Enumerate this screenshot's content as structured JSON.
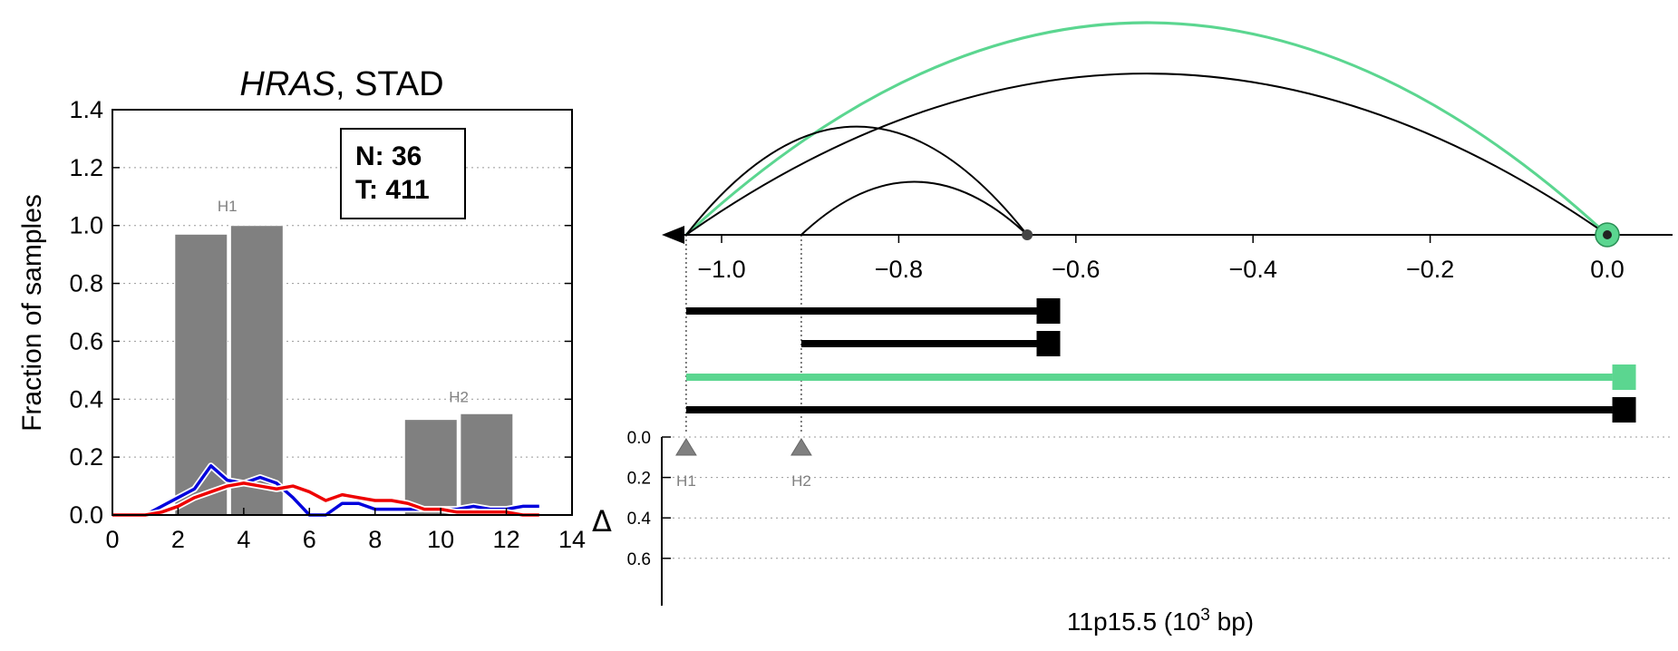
{
  "chart_data": [
    {
      "type": "bar",
      "title_gene": "HRAS",
      "title_rest": ", STAD",
      "ylabel": "Fraction of samples",
      "xlim": [
        0,
        14
      ],
      "ylim": [
        0,
        1.4
      ],
      "xticks": [
        "0",
        "2",
        "4",
        "6",
        "8",
        "10",
        "12",
        "14"
      ],
      "yticks": [
        "0.0",
        "0.2",
        "0.4",
        "0.6",
        "0.8",
        "1.0",
        "1.2",
        "1.4"
      ],
      "grid": "horizontal dotted",
      "bar_color": "#808080",
      "bars": [
        {
          "x": [
            1.9,
            3.5
          ],
          "value": 0.97
        },
        {
          "x": [
            3.6,
            5.2
          ],
          "value": 1.0
        },
        {
          "x": [
            8.9,
            10.5
          ],
          "value": 0.33
        },
        {
          "x": [
            10.6,
            12.2
          ],
          "value": 0.35
        }
      ],
      "bar_labels": [
        {
          "text": "H1",
          "x": 3.5,
          "y": 1.05
        },
        {
          "text": "H2",
          "x": 10.55,
          "y": 0.39
        }
      ],
      "counts_box": {
        "n": "N: 36",
        "t": "T: 411"
      },
      "series": [
        {
          "color": "#0000dd",
          "x": [
            0,
            1,
            2,
            2.5,
            3,
            3.5,
            4,
            4.5,
            5,
            5.5,
            6,
            6.5,
            7,
            7.5,
            8,
            8.5,
            9,
            9.5,
            10,
            10.5,
            11,
            11.5,
            12,
            12.5,
            13
          ],
          "values": [
            0,
            0,
            0.06,
            0.09,
            0.17,
            0.12,
            0.11,
            0.13,
            0.11,
            0.06,
            0.0,
            0.0,
            0.04,
            0.04,
            0.02,
            0.02,
            0.02,
            0.02,
            0.02,
            0.02,
            0.03,
            0.02,
            0.02,
            0.03,
            0.03
          ]
        },
        {
          "color": "#ee0000",
          "x": [
            0,
            1,
            1.5,
            2,
            2.5,
            3,
            3.5,
            4,
            4.5,
            5,
            5.5,
            6,
            6.5,
            7,
            7.5,
            8,
            8.5,
            9,
            9.5,
            10,
            10.5,
            11,
            11.5,
            12,
            12.5,
            13
          ],
          "values": [
            0,
            0,
            0.01,
            0.03,
            0.06,
            0.08,
            0.1,
            0.11,
            0.1,
            0.09,
            0.1,
            0.08,
            0.05,
            0.07,
            0.06,
            0.05,
            0.05,
            0.04,
            0.02,
            0.02,
            0.01,
            0.01,
            0.01,
            0.01,
            0.0,
            0.0
          ]
        }
      ]
    },
    {
      "type": "arc-diagram",
      "xlabel_prefix": "11p15.5 (10",
      "xlabel_exp": "3",
      "xlabel_suffix": " bp)",
      "xlim": [
        -1.1,
        0.06
      ],
      "xticks": [
        "−1.0",
        "−0.8",
        "−0.6",
        "−0.4",
        "−0.2",
        "0.0"
      ],
      "arcs": [
        {
          "from": -1.04,
          "to": 0.0,
          "color": "#5bd690",
          "height": 1.0
        },
        {
          "from": -1.04,
          "to": 0.0,
          "color": "#000000",
          "height": 0.76
        },
        {
          "from": -1.04,
          "to": -0.655,
          "color": "#000000",
          "height": 0.51
        },
        {
          "from": -0.91,
          "to": -0.655,
          "color": "#000000",
          "height": 0.25
        }
      ],
      "bars": [
        {
          "from": -1.04,
          "to": -0.63,
          "color": "#000000"
        },
        {
          "from": -0.91,
          "to": -0.63,
          "color": "#000000"
        },
        {
          "from": -1.04,
          "to": 0.02,
          "color": "#5bd690"
        },
        {
          "from": -1.04,
          "to": 0.02,
          "color": "#000000"
        }
      ],
      "markers": [
        {
          "label": "H1",
          "x": -1.04,
          "delta": 0.0
        },
        {
          "label": "H2",
          "x": -0.91,
          "delta": 0.0
        }
      ],
      "delta_label": "Δ",
      "delta_ticks": [
        "0.0",
        "0.2",
        "0.4",
        "0.6"
      ],
      "highlight_color": "#5bd690"
    }
  ]
}
